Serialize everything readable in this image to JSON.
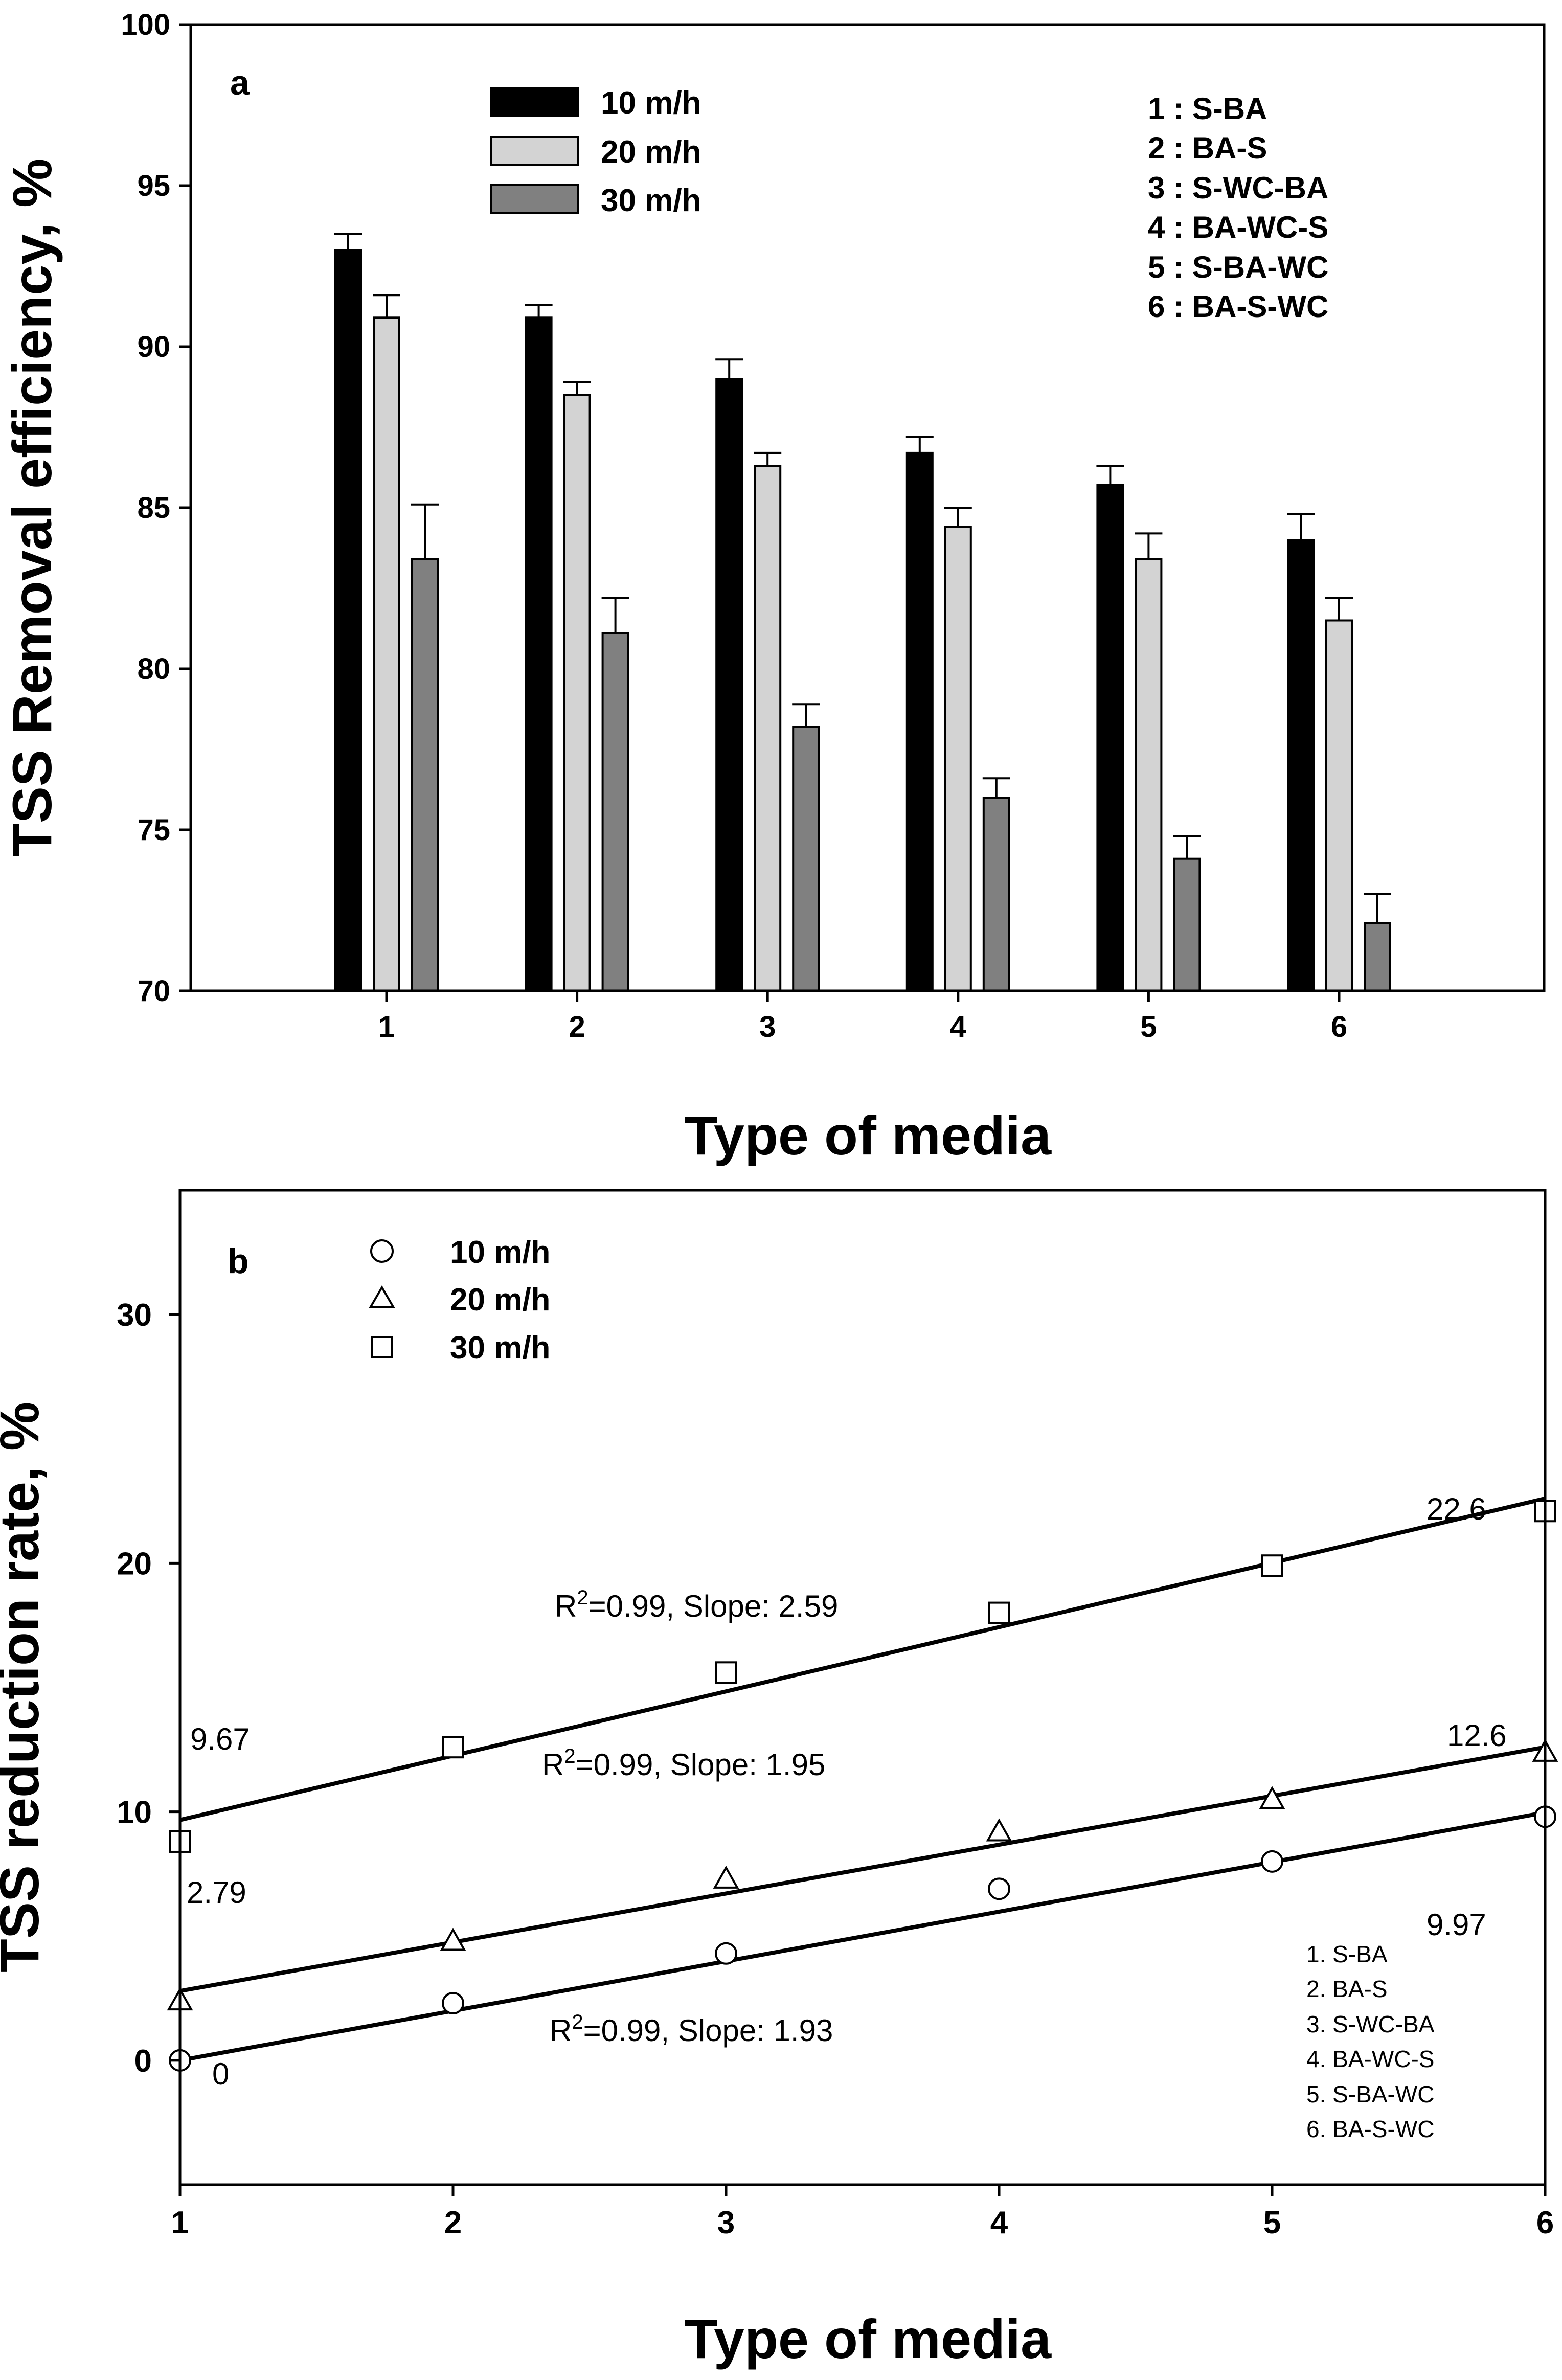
{
  "chart_data": [
    {
      "type": "bar",
      "panel_label": "a",
      "title": "",
      "xlabel": "Type of media",
      "ylabel": "TSS Removal efficiency, %",
      "ylim": [
        70,
        100
      ],
      "yticks": [
        "70",
        "75",
        "80",
        "85",
        "90",
        "95",
        "100"
      ],
      "categories": [
        "1",
        "2",
        "3",
        "4",
        "5",
        "6"
      ],
      "series": [
        {
          "name": "10 m/h",
          "color": "#000000",
          "values": [
            93.0,
            90.9,
            89.0,
            86.7,
            85.7,
            84.0
          ],
          "errors": [
            0.5,
            0.4,
            0.6,
            0.5,
            0.6,
            0.8
          ]
        },
        {
          "name": "20 m/h",
          "color": "#d3d3d3",
          "values": [
            90.9,
            88.5,
            86.3,
            84.4,
            83.4,
            81.5
          ],
          "errors": [
            0.7,
            0.4,
            0.4,
            0.6,
            0.8,
            0.7
          ]
        },
        {
          "name": "30 m/h",
          "color": "#808080",
          "values": [
            83.4,
            81.1,
            78.2,
            76.0,
            74.1,
            72.1
          ],
          "errors": [
            1.7,
            1.1,
            0.7,
            0.6,
            0.7,
            0.9
          ]
        }
      ],
      "media_key": [
        "1 : S-BA",
        "2 : BA-S",
        "3 : S-WC-BA",
        "4 : BA-WC-S",
        "5 : S-BA-WC",
        "6 : BA-S-WC"
      ]
    },
    {
      "type": "scatter",
      "panel_label": "b",
      "title": "",
      "xlabel": "Type of media",
      "ylabel": "TSS reduction rate, %",
      "xlim": [
        1,
        6
      ],
      "ylim": [
        -5,
        35
      ],
      "xticks": [
        "1",
        "2",
        "3",
        "4",
        "5",
        "6"
      ],
      "yticks": [
        "0",
        "10",
        "20",
        "30"
      ],
      "x": [
        1,
        2,
        3,
        4,
        5,
        6
      ],
      "series": [
        {
          "name": "10 m/h",
          "marker": "circle",
          "values": [
            0.0,
            2.3,
            4.3,
            6.9,
            8.0,
            9.8
          ],
          "fit": [
            0.0,
            9.97
          ]
        },
        {
          "name": "20 m/h",
          "marker": "triangle",
          "values": [
            2.4,
            4.8,
            7.3,
            9.2,
            10.5,
            12.4
          ],
          "fit": [
            2.79,
            12.6
          ]
        },
        {
          "name": "30 m/h",
          "marker": "square",
          "values": [
            8.8,
            12.6,
            15.6,
            18.0,
            19.9,
            22.1
          ],
          "fit": [
            9.67,
            22.6
          ]
        }
      ],
      "fit_labels": [
        {
          "pre": "R",
          "sup": "2",
          "post": "=0.99, Slope: 1.93"
        },
        {
          "pre": "R",
          "sup": "2",
          "post": "=0.99, Slope: 1.95"
        },
        {
          "pre": "R",
          "sup": "2",
          "post": "=0.99, Slope: 2.59"
        }
      ],
      "endpoint_labels": [
        "0",
        "9.97",
        "2.79",
        "12.6",
        "9.67",
        "22.6"
      ],
      "media_key": [
        "1. S-BA",
        "2. BA-S",
        "3. S-WC-BA",
        "4. BA-WC-S",
        "5. S-BA-WC",
        "6. BA-S-WC"
      ]
    }
  ]
}
